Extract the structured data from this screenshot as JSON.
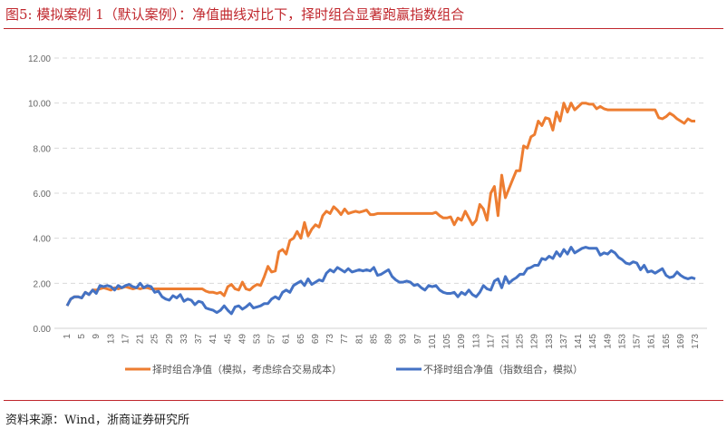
{
  "title": "图5:   模拟案例 1（默认案例）：净值曲线对比下，择时组合显著跑赢指数组合",
  "source": "资料来源：Wind，浙商证券研究所",
  "chart_data": {
    "type": "line",
    "title": "",
    "xlabel": "",
    "ylabel": "",
    "ylim": [
      0,
      12
    ],
    "yticks": [
      "0.00",
      "2.00",
      "4.00",
      "6.00",
      "8.00",
      "10.00",
      "12.00"
    ],
    "x_start": 1,
    "x_end": 173,
    "x_tick_step": 4,
    "grid": true,
    "legend_position": "bottom",
    "series": [
      {
        "name": "择时组合净值（模拟，考虑综合交易成本）",
        "color": "#ed7d31",
        "values": [
          1.0,
          1.3,
          1.4,
          1.4,
          1.35,
          1.6,
          1.5,
          1.7,
          1.7,
          1.75,
          1.8,
          1.75,
          1.7,
          1.8,
          1.75,
          1.8,
          1.85,
          1.8,
          1.75,
          1.8,
          1.75,
          1.8,
          1.8,
          1.75,
          1.75,
          1.75,
          1.75,
          1.75,
          1.75,
          1.75,
          1.75,
          1.75,
          1.75,
          1.75,
          1.75,
          1.75,
          1.75,
          1.75,
          1.65,
          1.6,
          1.6,
          1.55,
          1.6,
          1.45,
          1.85,
          1.95,
          1.75,
          1.7,
          2.05,
          1.75,
          1.7,
          1.85,
          1.95,
          1.9,
          2.3,
          2.75,
          2.5,
          2.55,
          3.4,
          3.5,
          3.3,
          3.9,
          4.0,
          4.3,
          4.0,
          4.7,
          4.1,
          4.4,
          4.6,
          4.5,
          5.0,
          5.2,
          5.1,
          5.4,
          5.25,
          5.05,
          5.3,
          5.1,
          5.15,
          5.2,
          5.15,
          5.2,
          5.25,
          5.05,
          5.05,
          5.1,
          5.1,
          5.1,
          5.1,
          5.1,
          5.1,
          5.1,
          5.1,
          5.1,
          5.1,
          5.1,
          5.1,
          5.1,
          5.1,
          5.1,
          5.1,
          5.15,
          5.0,
          4.9,
          4.9,
          4.95,
          4.6,
          4.9,
          4.8,
          5.2,
          4.9,
          4.6,
          4.8,
          5.5,
          5.3,
          4.8,
          6.0,
          6.3,
          5.0,
          6.8,
          5.8,
          6.2,
          6.6,
          7.0,
          7.0,
          8.1,
          8.0,
          8.5,
          8.6,
          9.2,
          9.0,
          9.35,
          9.3,
          8.8,
          9.6,
          9.2,
          10.0,
          9.6,
          10.0,
          9.7,
          9.85,
          10.0,
          10.0,
          9.95,
          9.95,
          9.75,
          9.85,
          9.75,
          9.7,
          9.7,
          9.7,
          9.7,
          9.7,
          9.7,
          9.7,
          9.7,
          9.7,
          9.7,
          9.7,
          9.7,
          9.7,
          9.7,
          9.35,
          9.3,
          9.4,
          9.55,
          9.45,
          9.3,
          9.2,
          9.1,
          9.3,
          9.2,
          9.2
        ]
      },
      {
        "name": "不择时组合净值（指数组合，模拟）",
        "color": "#4472c4",
        "values": [
          1.0,
          1.3,
          1.4,
          1.4,
          1.35,
          1.6,
          1.5,
          1.7,
          1.55,
          1.9,
          1.85,
          1.9,
          1.85,
          1.7,
          1.9,
          1.8,
          1.9,
          1.95,
          1.85,
          1.8,
          2.0,
          1.8,
          1.9,
          1.85,
          1.6,
          1.65,
          1.4,
          1.3,
          1.25,
          1.45,
          1.35,
          1.5,
          1.2,
          1.3,
          1.25,
          1.05,
          1.2,
          1.15,
          0.9,
          0.85,
          0.8,
          0.7,
          0.8,
          1.0,
          0.8,
          0.65,
          0.95,
          1.0,
          0.85,
          0.95,
          1.1,
          0.9,
          0.95,
          1.0,
          1.1,
          1.1,
          1.3,
          1.4,
          1.3,
          1.6,
          1.7,
          1.6,
          1.9,
          2.0,
          2.1,
          1.9,
          2.2,
          1.95,
          2.05,
          2.15,
          2.1,
          2.45,
          2.6,
          2.5,
          2.7,
          2.6,
          2.5,
          2.65,
          2.5,
          2.55,
          2.6,
          2.55,
          2.6,
          2.55,
          2.7,
          2.35,
          2.4,
          2.5,
          2.6,
          2.3,
          2.15,
          2.05,
          2.05,
          2.1,
          2.05,
          1.9,
          1.95,
          1.8,
          1.7,
          1.9,
          1.85,
          1.9,
          1.7,
          1.6,
          1.55,
          1.55,
          1.6,
          1.4,
          1.6,
          1.5,
          1.7,
          1.5,
          1.4,
          1.6,
          1.9,
          1.75,
          1.7,
          2.1,
          2.2,
          1.8,
          2.3,
          2.0,
          2.15,
          2.25,
          2.4,
          2.4,
          2.65,
          2.7,
          2.8,
          2.8,
          3.1,
          3.05,
          3.2,
          3.1,
          3.4,
          3.2,
          3.5,
          3.3,
          3.6,
          3.35,
          3.45,
          3.55,
          3.6,
          3.55,
          3.55,
          3.55,
          3.25,
          3.35,
          3.3,
          3.45,
          3.35,
          3.15,
          3.05,
          2.9,
          2.85,
          2.95,
          2.9,
          2.6,
          2.8,
          2.5,
          2.55,
          2.45,
          2.55,
          2.65,
          2.35,
          2.25,
          2.3,
          2.5,
          2.35,
          2.25,
          2.2,
          2.25,
          2.2
        ]
      }
    ]
  }
}
